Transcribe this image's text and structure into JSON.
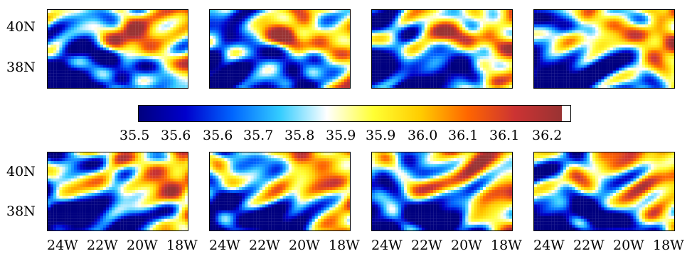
{
  "chart_data": {
    "type": "heatmap",
    "colormap": [
      "#00007f",
      "#0000cc",
      "#0066ff",
      "#33ccff",
      "#ffffff",
      "#ffff33",
      "#ffcc00",
      "#ff6600",
      "#cc3333",
      "#993333"
    ],
    "colorbar": {
      "ticks": [
        "35.5",
        "35.6",
        "35.6",
        "35.7",
        "35.8",
        "35.9",
        "35.9",
        "36.0",
        "36.1",
        "36.1",
        "36.2"
      ],
      "range": [
        35.5,
        36.2
      ]
    },
    "y_ticks": [
      "40N",
      "38N"
    ],
    "x_ticks": [
      "24W",
      "22W",
      "20W",
      "18W"
    ],
    "rows": 2,
    "cols": 4
  }
}
